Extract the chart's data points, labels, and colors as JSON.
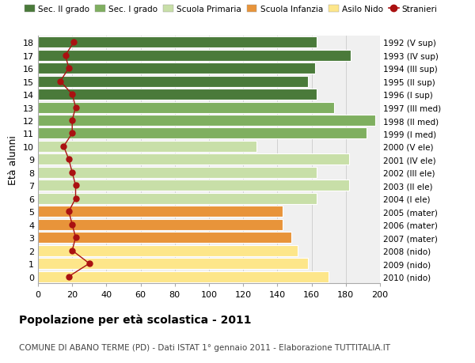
{
  "ages": [
    0,
    1,
    2,
    3,
    4,
    5,
    6,
    7,
    8,
    9,
    10,
    11,
    12,
    13,
    14,
    15,
    16,
    17,
    18
  ],
  "bar_values": [
    170,
    158,
    152,
    148,
    143,
    143,
    163,
    182,
    163,
    182,
    128,
    192,
    197,
    173,
    163,
    158,
    162,
    183,
    163
  ],
  "bar_colors": [
    "#FDE68A",
    "#FDE68A",
    "#FDE68A",
    "#E8943A",
    "#E8943A",
    "#E8943A",
    "#C8DFA8",
    "#C8DFA8",
    "#C8DFA8",
    "#C8DFA8",
    "#C8DFA8",
    "#7FAF60",
    "#7FAF60",
    "#7FAF60",
    "#4A7A3A",
    "#4A7A3A",
    "#4A7A3A",
    "#4A7A3A",
    "#4A7A3A"
  ],
  "stranieri_values": [
    18,
    30,
    20,
    22,
    20,
    18,
    22,
    22,
    20,
    18,
    15,
    20,
    20,
    22,
    20,
    13,
    18,
    16,
    21
  ],
  "right_labels": [
    "2010 (nido)",
    "2009 (nido)",
    "2008 (nido)",
    "2007 (mater)",
    "2006 (mater)",
    "2005 (mater)",
    "2004 (I ele)",
    "2003 (II ele)",
    "2002 (III ele)",
    "2001 (IV ele)",
    "2000 (V ele)",
    "1999 (I med)",
    "1998 (II med)",
    "1997 (III med)",
    "1996 (I sup)",
    "1995 (II sup)",
    "1994 (III sup)",
    "1993 (IV sup)",
    "1992 (V sup)"
  ],
  "xlabel": "",
  "ylabel": "Età alunni",
  "title": "Popolazione per età scolastica - 2011",
  "subtitle": "COMUNE DI ABANO TERME (PD) - Dati ISTAT 1° gennaio 2011 - Elaborazione TUTTITALIA.IT",
  "xlim": [
    0,
    200
  ],
  "xticks": [
    0,
    20,
    40,
    60,
    80,
    100,
    120,
    140,
    160,
    180,
    200
  ],
  "bg_color": "#FFFFFF",
  "plot_bg_color": "#F0F0F0",
  "legend_labels": [
    "Sec. II grado",
    "Sec. I grado",
    "Scuola Primaria",
    "Scuola Infanzia",
    "Asilo Nido",
    "Stranieri"
  ],
  "legend_colors": [
    "#4A7A3A",
    "#7FAF60",
    "#C8DFA8",
    "#E8943A",
    "#FDE68A",
    "#AA1111"
  ],
  "grid_color": "#CCCCCC",
  "bar_edge_color": "#FFFFFF",
  "stranieri_color": "#AA1111"
}
